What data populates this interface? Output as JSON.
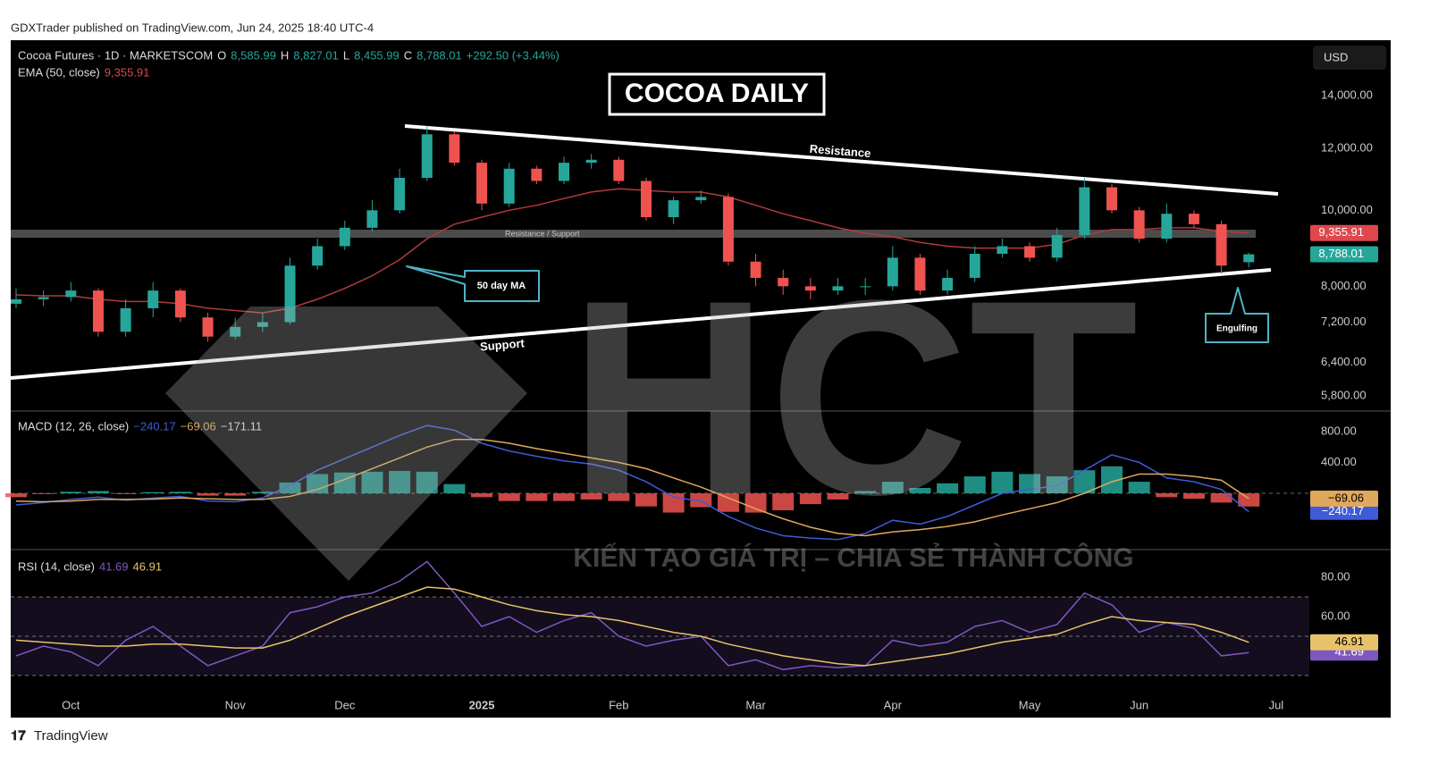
{
  "page": {
    "published": "GDXTrader published on TradingView.com, Jun 24, 2025 18:40 UTC-4",
    "currency": "USD",
    "footer": "TradingView",
    "title_box": "COCOA DAILY",
    "resistance": "Resistance",
    "support": "Support",
    "zone": "Resistance / Support",
    "ma_note": "50 day MA",
    "engulfing": "Engulfing",
    "watermark": "HCT",
    "tagline": "KIẾN TẠO GIÁ TRỊ – CHIA SẺ THÀNH CÔNG"
  },
  "chart_data": [
    {
      "type": "candlestick",
      "legend": [
        "Cocoa Futures · 1D · MARKETSCOM",
        "O",
        "8,585.99",
        "H",
        "8,827.01",
        "L",
        "8,455.99",
        "C",
        "8,788.01",
        "+292.50 (+3.44%)"
      ],
      "log_scale": true,
      "ylim": [
        5545,
        16480
      ],
      "yticks": [
        {
          "value": 5800,
          "label": "5,800.00"
        },
        {
          "value": 6400,
          "label": "6,400.00"
        },
        {
          "value": 7200,
          "label": "7,200.00"
        },
        {
          "value": 8000,
          "label": "8,000.00"
        },
        {
          "value": 10000,
          "label": "10,000.00"
        },
        {
          "value": 12000,
          "label": "12,000.00"
        },
        {
          "value": 14000,
          "label": "14,000.00"
        }
      ],
      "categories": [
        null,
        null,
        "Oct",
        null,
        null,
        null,
        null,
        null,
        "Nov",
        null,
        null,
        null,
        "Dec",
        null,
        null,
        null,
        null,
        "2025",
        null,
        null,
        null,
        null,
        "Feb",
        null,
        null,
        null,
        null,
        "Mar",
        null,
        null,
        null,
        null,
        "Apr",
        null,
        null,
        null,
        null,
        "May",
        null,
        null,
        null,
        "Jun",
        null,
        null,
        null,
        null,
        "Jul"
      ],
      "up_color": "#26a69a",
      "down_color": "#ef5350",
      "last_label": "8,788.01",
      "open": [
        7600,
        7700,
        7750,
        7900,
        7000,
        7500,
        7900,
        7300,
        6900,
        7100,
        7200,
        8500,
        9000,
        9500,
        10000,
        11000,
        12500,
        11500,
        10200,
        11300,
        10900,
        11500,
        11600,
        10900,
        9800,
        10300,
        10400,
        8600,
        8200,
        8000,
        7900,
        8000,
        8000,
        8700,
        7900,
        8200,
        8800,
        9000,
        8700,
        9300,
        10700,
        10000,
        9200,
        9900,
        9600,
        8585.99,
        null
      ],
      "high": [
        7950,
        7900,
        8100,
        7950,
        7700,
        8100,
        7950,
        7400,
        7300,
        7400,
        8700,
        9200,
        9700,
        10300,
        11300,
        12800,
        12600,
        11600,
        11500,
        11400,
        11700,
        11800,
        11700,
        11000,
        10400,
        10600,
        10500,
        8800,
        8400,
        8200,
        8200,
        8200,
        9000,
        8800,
        8400,
        9000,
        9200,
        9100,
        9500,
        11000,
        10800,
        10100,
        10200,
        10000,
        9700,
        8827.01,
        null
      ],
      "low": [
        7500,
        7550,
        7650,
        6900,
        6900,
        7300,
        7200,
        6800,
        6850,
        7000,
        7150,
        8400,
        8900,
        9400,
        9900,
        10900,
        11400,
        10000,
        10100,
        10800,
        10800,
        11300,
        10800,
        9700,
        9600,
        10200,
        8500,
        8000,
        7800,
        7700,
        7800,
        7800,
        7900,
        7800,
        7800,
        8100,
        8700,
        8600,
        8600,
        9200,
        9900,
        9100,
        9100,
        9500,
        8300,
        8455.99,
        null
      ],
      "close": [
        7700,
        7750,
        7900,
        7000,
        7500,
        7900,
        7300,
        6900,
        7100,
        7200,
        8500,
        9000,
        9500,
        10000,
        11000,
        12500,
        11500,
        10200,
        11300,
        10900,
        11500,
        11600,
        10900,
        9800,
        10300,
        10400,
        8600,
        8200,
        8000,
        7900,
        8000,
        8000,
        8700,
        7900,
        8200,
        8800,
        9000,
        8700,
        9300,
        10700,
        10000,
        9200,
        9900,
        9600,
        8500,
        8788.01,
        null
      ],
      "series": [
        {
          "name": "EMA (50, close)",
          "color": "#b23a3a",
          "last_label": "9,355.91",
          "values": [
            7800,
            7780,
            7780,
            7700,
            7650,
            7650,
            7600,
            7500,
            7450,
            7400,
            7500,
            7700,
            7950,
            8250,
            8650,
            9200,
            9600,
            9800,
            10000,
            10150,
            10350,
            10550,
            10650,
            10600,
            10550,
            10550,
            10400,
            10150,
            9900,
            9700,
            9500,
            9350,
            9250,
            9100,
            9000,
            8950,
            8950,
            8950,
            9050,
            9300,
            9450,
            9450,
            9500,
            9500,
            9400,
            9355.91,
            null
          ]
        }
      ]
    },
    {
      "type": "combo",
      "legend": "MACD (12, 26, close)",
      "ylim": [
        -730,
        1067
      ],
      "yticks": [
        {
          "value": 400,
          "label": "400.00"
        },
        {
          "value": 800,
          "label": "800.00"
        }
      ],
      "series": [
        {
          "style": "bar",
          "color": "#26a69a",
          "negative_color": "#ef5350",
          "last_label": "−171.11",
          "values": [
            -50,
            -10,
            20,
            30,
            -10,
            15,
            20,
            -30,
            -30,
            20,
            140,
            250,
            270,
            280,
            290,
            280,
            120,
            -50,
            -100,
            -100,
            -100,
            -80,
            -100,
            -170,
            -250,
            -180,
            -240,
            -250,
            -220,
            -140,
            -80,
            30,
            150,
            70,
            130,
            220,
            280,
            250,
            220,
            300,
            350,
            150,
            -50,
            -70,
            -120,
            -171.11,
            null
          ]
        },
        {
          "style": "line",
          "color": "#3f5bd8",
          "last_label": "−240.17",
          "values": [
            -150,
            -120,
            -80,
            -50,
            -90,
            -60,
            -40,
            -100,
            -110,
            -60,
            100,
            300,
            450,
            600,
            750,
            880,
            820,
            650,
            550,
            480,
            420,
            380,
            300,
            150,
            -50,
            -100,
            -300,
            -450,
            -550,
            -580,
            -600,
            -520,
            -350,
            -400,
            -300,
            -150,
            0,
            50,
            100,
            300,
            500,
            400,
            200,
            150,
            50,
            -240.17,
            null
          ]
        },
        {
          "style": "line",
          "color": "#e0a85a",
          "last_label": "−69.06",
          "values": [
            -100,
            -110,
            -100,
            -80,
            -80,
            -75,
            -60,
            -70,
            -80,
            -80,
            -40,
            50,
            180,
            320,
            460,
            600,
            700,
            700,
            650,
            580,
            520,
            460,
            400,
            320,
            200,
            80,
            -60,
            -200,
            -330,
            -440,
            -520,
            -550,
            -500,
            -470,
            -430,
            -370,
            -280,
            -200,
            -120,
            0,
            150,
            250,
            250,
            220,
            170,
            -69.06,
            null
          ]
        }
      ]
    },
    {
      "type": "line",
      "legend": "RSI (14, close)",
      "ylim": [
        23.6,
        94.1
      ],
      "yticks": [
        {
          "value": 60,
          "label": "60.00"
        },
        {
          "value": 80,
          "label": "80.00"
        }
      ],
      "levels": [
        30,
        50,
        70
      ],
      "series": [
        {
          "color": "#7e57c2",
          "last_label": "41.69",
          "values": [
            40,
            45,
            42,
            35,
            48,
            55,
            45,
            35,
            40,
            45,
            62,
            65,
            70,
            72,
            78,
            88,
            72,
            55,
            60,
            52,
            58,
            62,
            50,
            45,
            48,
            50,
            35,
            38,
            33,
            35,
            34,
            35,
            48,
            45,
            47,
            55,
            58,
            52,
            56,
            72,
            66,
            52,
            57,
            54,
            40,
            41.69,
            null
          ]
        },
        {
          "color": "#e8c26a",
          "last_label": "46.91",
          "values": [
            48,
            47,
            46,
            45,
            45,
            46,
            46,
            45,
            44,
            44,
            48,
            54,
            60,
            65,
            70,
            75,
            74,
            70,
            66,
            63,
            61,
            60,
            58,
            55,
            52,
            50,
            46,
            43,
            40,
            38,
            36,
            35,
            37,
            39,
            41,
            44,
            47,
            49,
            51,
            56,
            60,
            58,
            57,
            56,
            52,
            46.91,
            null
          ]
        }
      ]
    }
  ]
}
